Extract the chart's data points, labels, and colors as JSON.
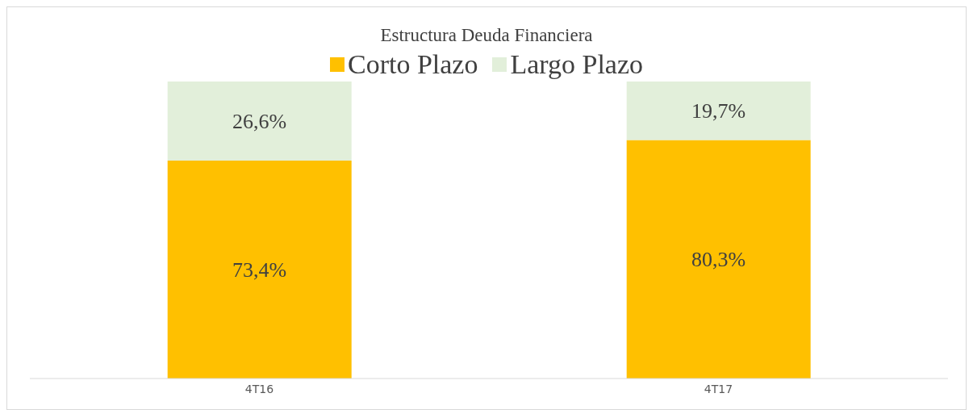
{
  "chart_data": {
    "type": "bar",
    "title": "Estructura Deuda Financiera",
    "categories": [
      "4T16",
      "4T17"
    ],
    "stacked": true,
    "legend": "top",
    "grid": false,
    "series": [
      {
        "name": "Corto Plazo",
        "color": "#ffc000",
        "values": [
          73.4,
          80.3
        ],
        "value_labels": [
          "73,4%",
          "80,3%"
        ]
      },
      {
        "name": "Largo Plazo",
        "color": "#e2efda",
        "values": [
          26.6,
          19.7
        ],
        "value_labels": [
          "26,6%",
          "19,7%"
        ]
      }
    ]
  }
}
